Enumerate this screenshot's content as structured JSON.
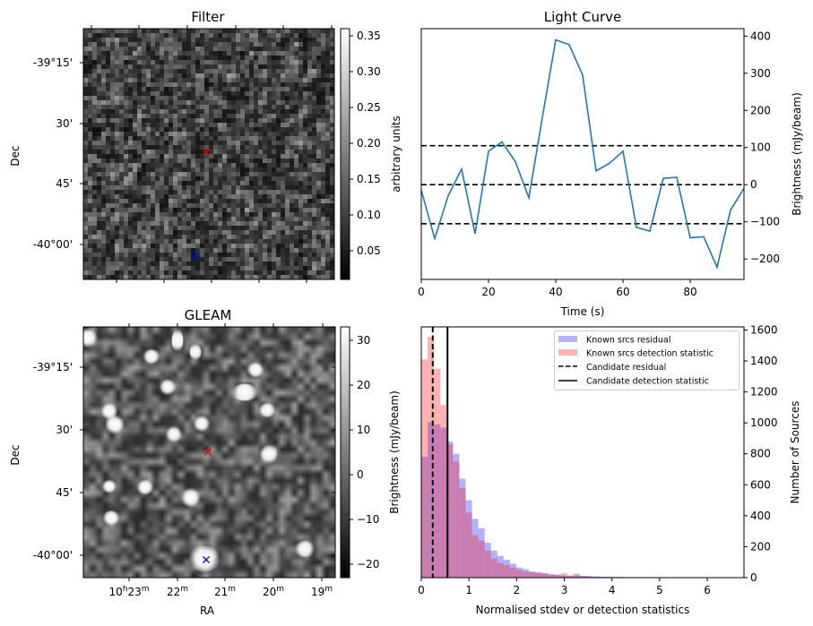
{
  "figure": {
    "panels": {
      "filter": {
        "title": "Filter",
        "ylabel": "Dec",
        "dec_ticks": [
          "-39°15'",
          "30'",
          "45'",
          "-40°00'"
        ],
        "colorbar": {
          "label": "arbitrary units",
          "ticks": [
            "0.05",
            "0.10",
            "0.15",
            "0.20",
            "0.25",
            "0.30",
            "0.35"
          ],
          "tick_values": [
            0.05,
            0.1,
            0.15,
            0.2,
            0.25,
            0.3,
            0.35
          ],
          "range": [
            0.01,
            0.36
          ]
        },
        "markers": [
          {
            "name": "candidate",
            "symbol": "x",
            "color": "#ff0000"
          },
          {
            "name": "reference",
            "symbol": "x",
            "color": "#0000ff"
          }
        ]
      },
      "gleam": {
        "title": "GLEAM",
        "ylabel": "Dec",
        "xlabel": "RA",
        "dec_ticks": [
          "-39°15'",
          "30'",
          "45'",
          "-40°00'"
        ],
        "ra_ticks": [
          {
            "main": "10",
            "sup1": "h",
            "mid": "23",
            "sup2": "m"
          },
          {
            "main": "",
            "sup1": "",
            "mid": "22",
            "sup2": "m"
          },
          {
            "main": "",
            "sup1": "",
            "mid": "21",
            "sup2": "m"
          },
          {
            "main": "",
            "sup1": "",
            "mid": "20",
            "sup2": "m"
          },
          {
            "main": "",
            "sup1": "",
            "mid": "19",
            "sup2": "m"
          }
        ],
        "colorbar": {
          "label": "Brightness (mJy/beam)",
          "ticks": [
            "−20",
            "−10",
            "0",
            "10",
            "20",
            "30"
          ],
          "tick_values": [
            -20,
            -10,
            0,
            10,
            20,
            30
          ],
          "range": [
            -23,
            33
          ]
        },
        "markers": [
          {
            "name": "candidate",
            "symbol": "x",
            "color": "#ff0000"
          },
          {
            "name": "reference",
            "symbol": "x",
            "color": "#0000ff"
          }
        ]
      }
    }
  },
  "chart_data": [
    {
      "type": "line",
      "title": "Light Curve",
      "xlabel": "Time (s)",
      "ylabel": "Brightness (mJy/beam)",
      "xlim": [
        0,
        96
      ],
      "ylim": [
        -255,
        420
      ],
      "xticks": [
        0,
        20,
        40,
        60,
        80
      ],
      "yticks": [
        -200,
        -100,
        0,
        100,
        200,
        300,
        400
      ],
      "ytick_labels": [
        "−200",
        "−100",
        "0",
        "100",
        "200",
        "300",
        "400"
      ],
      "y_axis_side": "right",
      "grid": false,
      "series": [
        {
          "name": "light curve",
          "color": "#1f77b4",
          "x": [
            0,
            4,
            8,
            12,
            16,
            20,
            24,
            28,
            32,
            36,
            40,
            44,
            48,
            52,
            56,
            60,
            64,
            68,
            72,
            76,
            80,
            84,
            88,
            92,
            96
          ],
          "y": [
            -15,
            -145,
            -30,
            42,
            -132,
            90,
            115,
            62,
            -35,
            180,
            390,
            377,
            295,
            37,
            58,
            90,
            -115,
            -125,
            17,
            20,
            -143,
            -140,
            -222,
            -68,
            -10
          ]
        }
      ],
      "hlines": [
        {
          "y": 105,
          "style": "dashed",
          "color": "#000000"
        },
        {
          "y": 0,
          "style": "dashed",
          "color": "#000000"
        },
        {
          "y": -105,
          "style": "dashed",
          "color": "#000000"
        }
      ]
    },
    {
      "type": "bar",
      "subtype": "histogram",
      "title": "",
      "xlabel": "Normalised stdev or detection statistics",
      "ylabel": "Number of Sources",
      "xlim": [
        0,
        6.77
      ],
      "ylim": [
        0,
        1620
      ],
      "xticks": [
        0,
        1,
        2,
        3,
        4,
        5,
        6
      ],
      "yticks": [
        0,
        200,
        400,
        600,
        800,
        1000,
        1200,
        1400,
        1600
      ],
      "y_axis_side": "right",
      "legend_position": "top-right",
      "bin_width": 0.133,
      "series": [
        {
          "name": "Known srcs residual",
          "color": "#0000ff",
          "alpha": 0.3,
          "values": [
            780,
            1005,
            990,
            970,
            880,
            800,
            640,
            500,
            380,
            320,
            225,
            175,
            140,
            115,
            90,
            65,
            55,
            40,
            35,
            30,
            22,
            18,
            14,
            12,
            25,
            12,
            10,
            8,
            6,
            5,
            4,
            4,
            3,
            3,
            3,
            3,
            3,
            2,
            2,
            2,
            2,
            2,
            2,
            2,
            2,
            2,
            2,
            2,
            2,
            2
          ]
        },
        {
          "name": "Known srcs detection statistic",
          "color": "#ff0000",
          "alpha": 0.3,
          "values": [
            1410,
            1555,
            1350,
            1115,
            860,
            750,
            580,
            420,
            275,
            240,
            175,
            125,
            95,
            80,
            65,
            50,
            40,
            35,
            30,
            25,
            20,
            18,
            28,
            14,
            12,
            10,
            8,
            6,
            5,
            5,
            4,
            4,
            3,
            3,
            3,
            3,
            3,
            3,
            2,
            2,
            2,
            2,
            2,
            2,
            2,
            2,
            2,
            2,
            2,
            2
          ]
        }
      ],
      "vlines": [
        {
          "name": "Candidate residual",
          "x": 0.24,
          "style": "dashed",
          "color": "#000000"
        },
        {
          "name": "Candidate detection statistic",
          "x": 0.55,
          "style": "solid",
          "color": "#000000"
        }
      ],
      "legend": [
        {
          "label": "Known srcs residual",
          "kind": "patch",
          "color": "#0000ff"
        },
        {
          "label": "Known srcs detection statistic",
          "kind": "patch",
          "color": "#ff0000"
        },
        {
          "label": "Candidate residual",
          "kind": "dashed-line",
          "color": "#000000"
        },
        {
          "label": "Candidate detection statistic",
          "kind": "solid-line",
          "color": "#000000"
        }
      ]
    }
  ]
}
